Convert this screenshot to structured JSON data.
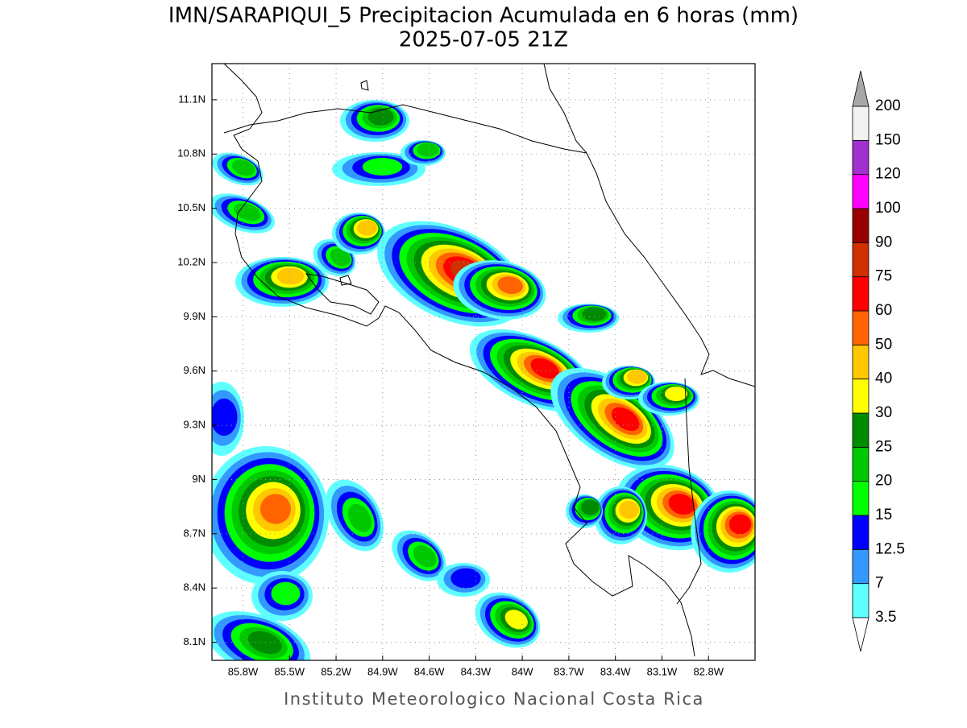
{
  "chart_data": {
    "type": "map",
    "title": "IMN/SARAPIQUI_5 Precipitacion Acumulada en 6 horas (mm)",
    "subtitle": "2025-07-05 21Z",
    "footer": "Instituto Meteorologico Nacional Costa Rica",
    "xlim": [
      -86.0,
      -82.5
    ],
    "ylim": [
      8.0,
      11.3
    ],
    "grid": true,
    "xticks": [
      {
        "value": -85.8,
        "label": "85.8W"
      },
      {
        "value": -85.5,
        "label": "85.5W"
      },
      {
        "value": -85.2,
        "label": "85.2W"
      },
      {
        "value": -84.9,
        "label": "84.9W"
      },
      {
        "value": -84.6,
        "label": "84.6W"
      },
      {
        "value": -84.3,
        "label": "84.3W"
      },
      {
        "value": -84.0,
        "label": "84W"
      },
      {
        "value": -83.7,
        "label": "83.7W"
      },
      {
        "value": -83.4,
        "label": "83.4W"
      },
      {
        "value": -83.1,
        "label": "83.1W"
      },
      {
        "value": -82.8,
        "label": "82.8W"
      }
    ],
    "yticks": [
      {
        "value": 8.1,
        "label": "8.1N"
      },
      {
        "value": 8.4,
        "label": "8.4N"
      },
      {
        "value": 8.7,
        "label": "8.7N"
      },
      {
        "value": 9.0,
        "label": "9N"
      },
      {
        "value": 9.3,
        "label": "9.3N"
      },
      {
        "value": 9.6,
        "label": "9.6N"
      },
      {
        "value": 9.9,
        "label": "9.9N"
      },
      {
        "value": 10.2,
        "label": "10.2N"
      },
      {
        "value": 10.5,
        "label": "10.5N"
      },
      {
        "value": 10.8,
        "label": "10.8N"
      },
      {
        "value": 11.1,
        "label": "11.1N"
      }
    ],
    "colorbar": {
      "levels": [
        3.5,
        7,
        12.5,
        15,
        20,
        25,
        30,
        40,
        50,
        60,
        75,
        90,
        100,
        120,
        150,
        200
      ],
      "colors": [
        "#60ffff",
        "#3399ff",
        "#0000ff",
        "#00ff00",
        "#00c800",
        "#008c00",
        "#ffff00",
        "#ffc800",
        "#ff6400",
        "#ff0000",
        "#d03000",
        "#990000",
        "#ff00ff",
        "#a030d0",
        "#f2f2f2"
      ],
      "under_color": "#ffffff",
      "over_color": "#a8a8a8"
    }
  }
}
